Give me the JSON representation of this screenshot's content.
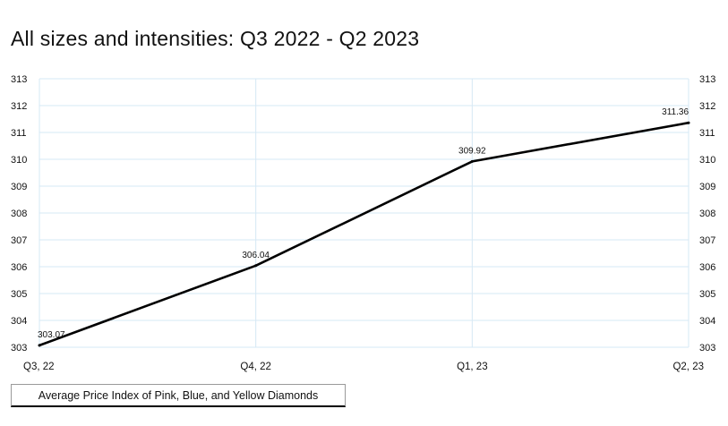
{
  "title": "All sizes and intensities: Q3 2022 - Q2 2023",
  "legend": {
    "label": "Average Price Index of Pink, Blue, and Yellow Diamonds"
  },
  "colors": {
    "line": "#000000",
    "grid": "#d6e8f5",
    "text": "#111111"
  },
  "chart_data": {
    "type": "line",
    "title": "All sizes and intensities: Q3 2022 - Q2 2023",
    "categories": [
      "Q3, 22",
      "Q4, 22",
      "Q1, 23",
      "Q2, 23"
    ],
    "series": [
      {
        "name": "Average Price Index of Pink, Blue, and Yellow Diamonds",
        "values": [
          303.07,
          306.04,
          309.92,
          311.36
        ],
        "labels": [
          "303.07",
          "306.04",
          "309.92",
          "311.36"
        ]
      }
    ],
    "yticks": [
      "303",
      "304",
      "305",
      "306",
      "307",
      "308",
      "309",
      "310",
      "311",
      "312",
      "313"
    ],
    "ylim": [
      303,
      313
    ],
    "grid": true,
    "legend_position": "bottom-left",
    "dual_y_axis": true
  }
}
